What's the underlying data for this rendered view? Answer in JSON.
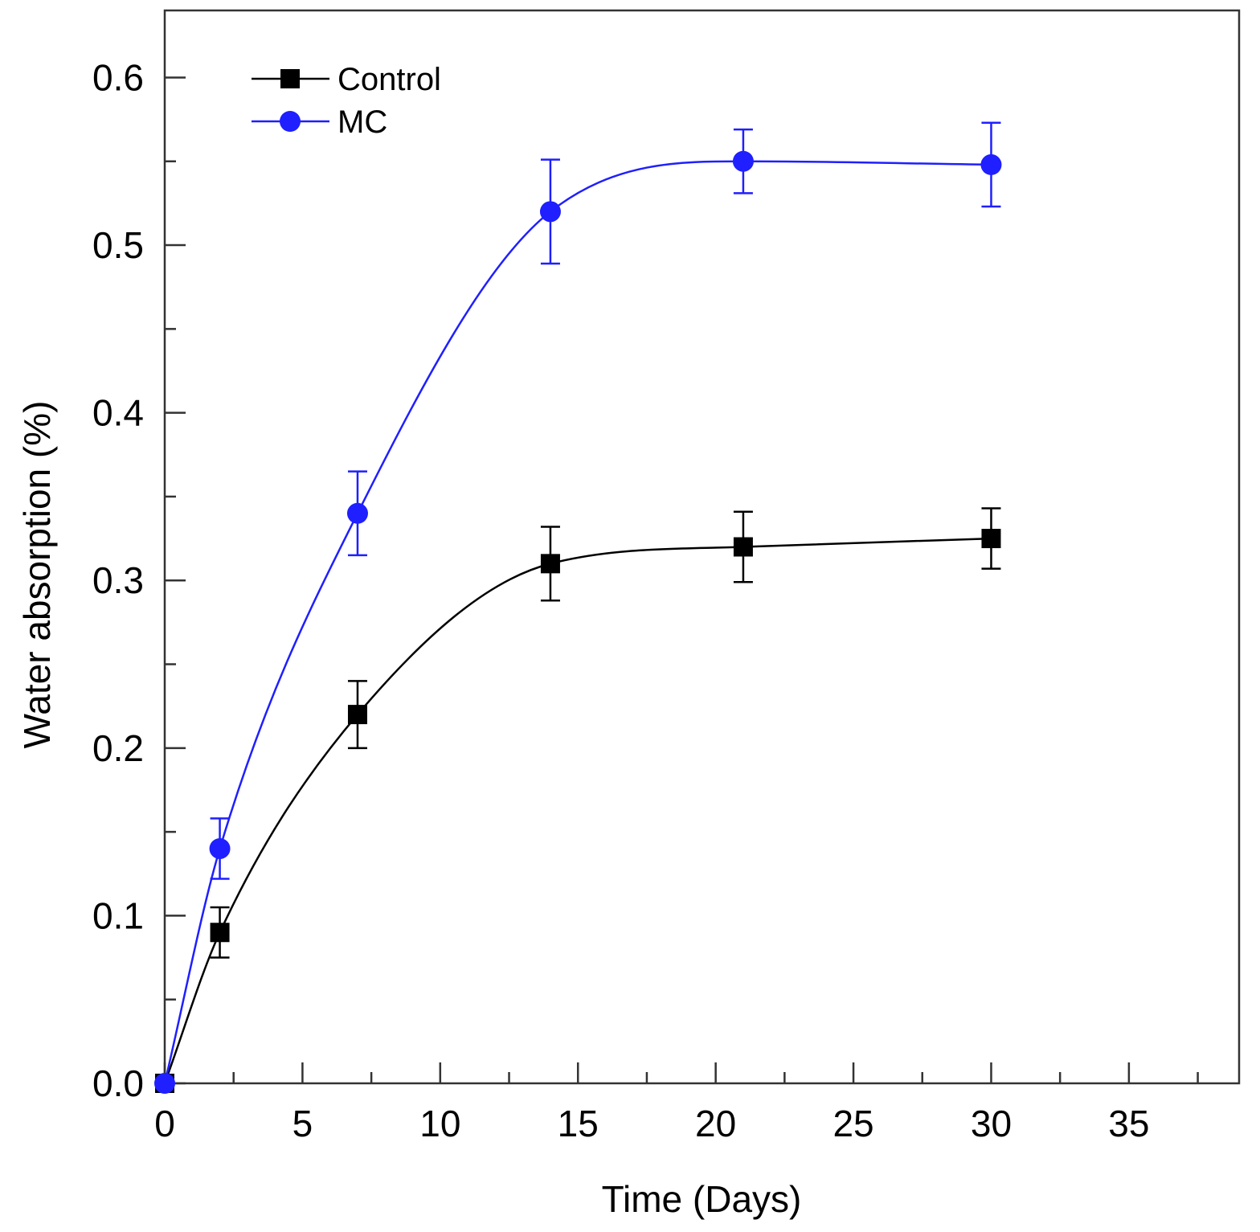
{
  "chart_data": {
    "type": "line",
    "title": "",
    "xlabel": "Time (Days)",
    "ylabel": "Water absorption (%)",
    "xlim": [
      0,
      39
    ],
    "ylim": [
      0,
      0.64
    ],
    "xticks": [
      0,
      5,
      10,
      15,
      20,
      25,
      30,
      35
    ],
    "xtick_labels": [
      "0",
      "5",
      "10",
      "15",
      "20",
      "25",
      "30",
      "35"
    ],
    "yticks": [
      0.0,
      0.1,
      0.2,
      0.3,
      0.4,
      0.5,
      0.6
    ],
    "ytick_labels": [
      "0.0",
      "0.1",
      "0.2",
      "0.3",
      "0.4",
      "0.5",
      "0.6"
    ],
    "grid": false,
    "legend_position": "top-left",
    "series": [
      {
        "name": "Control",
        "color": "#000000",
        "marker": "square",
        "x": [
          0,
          2,
          7,
          14,
          21,
          30
        ],
        "y": [
          0.0,
          0.09,
          0.22,
          0.31,
          0.32,
          0.325
        ],
        "error": [
          0,
          0.015,
          0.02,
          0.022,
          0.021,
          0.018
        ]
      },
      {
        "name": "MC",
        "color": "#1f1fff",
        "marker": "circle",
        "x": [
          0,
          2,
          7,
          14,
          21,
          30
        ],
        "y": [
          0.0,
          0.14,
          0.34,
          0.52,
          0.55,
          0.548
        ],
        "error": [
          0,
          0.018,
          0.025,
          0.031,
          0.019,
          0.025
        ]
      }
    ]
  }
}
